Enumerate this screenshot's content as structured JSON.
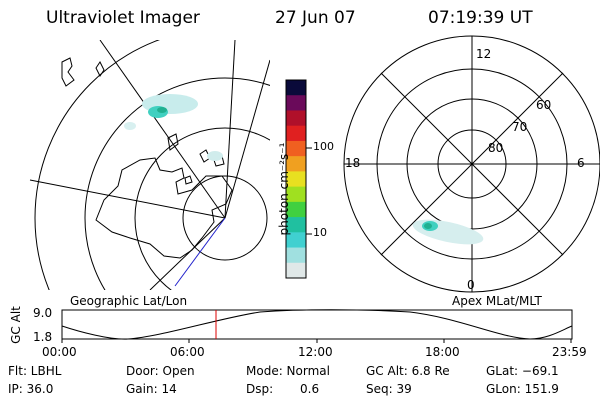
{
  "header": {
    "instrument": "Ultraviolet Imager",
    "date": "27 Jun 07",
    "time": "07:19:39 UT"
  },
  "colorbar": {
    "label": "photon cm⁻²s⁻¹",
    "ticks": [
      "100",
      "10"
    ],
    "colors": [
      "#0a0a3a",
      "#6a0a5a",
      "#b0102a",
      "#e02020",
      "#f06020",
      "#f0a020",
      "#e8e020",
      "#a0e020",
      "#40d040",
      "#20c0a0",
      "#40d0d0",
      "#a0e0e0",
      "#e0e8e8"
    ]
  },
  "geo_map": {
    "caption": "Geographic Lat/Lon"
  },
  "polar_map": {
    "caption": "Apex MLat/MLT",
    "mlt_labels": {
      "top": "12",
      "left": "18",
      "right": "6",
      "bottom": "0"
    },
    "lat_labels": [
      "60",
      "70",
      "80"
    ]
  },
  "altitude_plot": {
    "axis_label": "GC Alt",
    "y_ticks": [
      "9.0",
      "1.8"
    ],
    "x_ticks": [
      "00:00",
      "06:00",
      "12:00",
      "18:00",
      "23:59"
    ],
    "marker_time": "07:19:39"
  },
  "status": {
    "flt": "Flt: LBHL",
    "ip": "IP: 36.0",
    "door": "Door: Open",
    "gain": "Gain: 14",
    "mode": "Mode: Normal",
    "dsp_label": "Dsp:",
    "dsp_value": "0.6",
    "gc_alt": "GC Alt: 6.8 Re",
    "seq": "Seq: 39",
    "glat": "GLat: −69.1",
    "glon": "GLon: 151.9"
  }
}
